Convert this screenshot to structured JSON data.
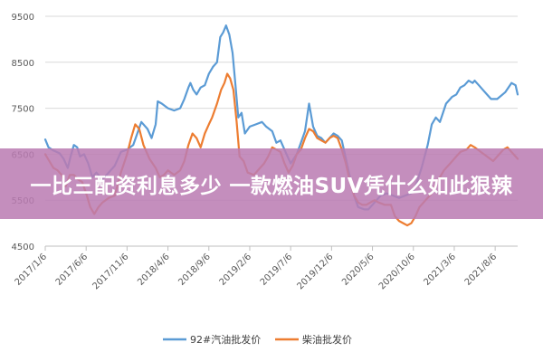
{
  "overlay": {
    "headline": "一比三配资利息多少 一款燃油SUV凭什么如此狠辣",
    "color": "#b97bb1"
  },
  "chart_data": {
    "type": "line",
    "title": "",
    "xlabel": "",
    "ylabel": "",
    "ylim": [
      4500,
      9500
    ],
    "yticks": [
      4500,
      5500,
      6500,
      7500,
      8500,
      9500
    ],
    "xticks": [
      "2017/1/6",
      "2017/6/6",
      "2017/11/6",
      "2018/4/6",
      "2018/9/6",
      "2019/2/6",
      "2019/7/6",
      "2019/12/6",
      "2020/5/6",
      "2020/10/6",
      "2021/3/6",
      "2021/8/6"
    ],
    "xrange": [
      0,
      11.55
    ],
    "grid": true,
    "legend": "bottom",
    "series": [
      {
        "name": "92#汽油批发价",
        "color": "#5b9bd5",
        "points": [
          [
            0.0,
            6820
          ],
          [
            0.08,
            6650
          ],
          [
            0.2,
            6580
          ],
          [
            0.35,
            6520
          ],
          [
            0.45,
            6400
          ],
          [
            0.55,
            6200
          ],
          [
            0.62,
            6450
          ],
          [
            0.7,
            6700
          ],
          [
            0.78,
            6650
          ],
          [
            0.85,
            6450
          ],
          [
            0.95,
            6500
          ],
          [
            1.05,
            6300
          ],
          [
            1.15,
            6000
          ],
          [
            1.25,
            6100
          ],
          [
            1.4,
            5950
          ],
          [
            1.55,
            6100
          ],
          [
            1.7,
            6250
          ],
          [
            1.85,
            6550
          ],
          [
            2.0,
            6600
          ],
          [
            2.15,
            6700
          ],
          [
            2.25,
            6950
          ],
          [
            2.35,
            7200
          ],
          [
            2.5,
            7050
          ],
          [
            2.6,
            6850
          ],
          [
            2.7,
            7150
          ],
          [
            2.75,
            7650
          ],
          [
            2.85,
            7600
          ],
          [
            3.0,
            7500
          ],
          [
            3.15,
            7450
          ],
          [
            3.3,
            7500
          ],
          [
            3.4,
            7700
          ],
          [
            3.5,
            7950
          ],
          [
            3.55,
            8050
          ],
          [
            3.62,
            7900
          ],
          [
            3.7,
            7800
          ],
          [
            3.8,
            7950
          ],
          [
            3.9,
            8000
          ],
          [
            4.0,
            8250
          ],
          [
            4.1,
            8400
          ],
          [
            4.2,
            8500
          ],
          [
            4.28,
            9050
          ],
          [
            4.35,
            9150
          ],
          [
            4.42,
            9300
          ],
          [
            4.5,
            9100
          ],
          [
            4.58,
            8700
          ],
          [
            4.65,
            8000
          ],
          [
            4.72,
            7300
          ],
          [
            4.8,
            7400
          ],
          [
            4.88,
            6950
          ],
          [
            5.0,
            7100
          ],
          [
            5.15,
            7150
          ],
          [
            5.3,
            7200
          ],
          [
            5.4,
            7100
          ],
          [
            5.55,
            7000
          ],
          [
            5.65,
            6750
          ],
          [
            5.75,
            6800
          ],
          [
            5.9,
            6500
          ],
          [
            6.0,
            6300
          ],
          [
            6.15,
            6500
          ],
          [
            6.25,
            6750
          ],
          [
            6.35,
            7000
          ],
          [
            6.45,
            7600
          ],
          [
            6.55,
            7100
          ],
          [
            6.65,
            6900
          ],
          [
            6.75,
            6850
          ],
          [
            6.85,
            6750
          ],
          [
            6.95,
            6850
          ],
          [
            7.05,
            6950
          ],
          [
            7.15,
            6900
          ],
          [
            7.25,
            6800
          ],
          [
            7.35,
            6400
          ],
          [
            7.45,
            6000
          ],
          [
            7.55,
            5600
          ],
          [
            7.65,
            5350
          ],
          [
            7.8,
            5300
          ],
          [
            7.9,
            5300
          ],
          [
            8.0,
            5400
          ],
          [
            8.1,
            5500
          ],
          [
            8.2,
            5600
          ],
          [
            8.35,
            5650
          ],
          [
            8.5,
            5600
          ],
          [
            8.65,
            5550
          ],
          [
            8.8,
            5600
          ],
          [
            8.95,
            5650
          ],
          [
            9.05,
            5800
          ],
          [
            9.2,
            6200
          ],
          [
            9.35,
            6700
          ],
          [
            9.45,
            7150
          ],
          [
            9.55,
            7300
          ],
          [
            9.65,
            7200
          ],
          [
            9.8,
            7600
          ],
          [
            9.95,
            7750
          ],
          [
            10.05,
            7800
          ],
          [
            10.15,
            7950
          ],
          [
            10.25,
            8000
          ],
          [
            10.35,
            8100
          ],
          [
            10.45,
            8050
          ],
          [
            10.5,
            8100
          ],
          [
            10.6,
            8000
          ],
          [
            10.7,
            7900
          ],
          [
            10.8,
            7800
          ],
          [
            10.9,
            7700
          ],
          [
            11.05,
            7700
          ],
          [
            11.25,
            7850
          ],
          [
            11.4,
            8050
          ],
          [
            11.5,
            8000
          ],
          [
            11.55,
            7800
          ]
        ]
      },
      {
        "name": "柴油批发价",
        "color": "#ed7d31",
        "points": [
          [
            0.0,
            6500
          ],
          [
            0.1,
            6350
          ],
          [
            0.2,
            6200
          ],
          [
            0.3,
            6150
          ],
          [
            0.4,
            6050
          ],
          [
            0.5,
            5800
          ],
          [
            0.6,
            6050
          ],
          [
            0.7,
            6050
          ],
          [
            0.8,
            5950
          ],
          [
            0.9,
            5900
          ],
          [
            1.0,
            5650
          ],
          [
            1.1,
            5350
          ],
          [
            1.2,
            5200
          ],
          [
            1.3,
            5350
          ],
          [
            1.4,
            5450
          ],
          [
            1.55,
            5550
          ],
          [
            1.7,
            5600
          ],
          [
            1.85,
            6100
          ],
          [
            2.0,
            6500
          ],
          [
            2.1,
            6850
          ],
          [
            2.2,
            7150
          ],
          [
            2.3,
            7050
          ],
          [
            2.4,
            6700
          ],
          [
            2.55,
            6400
          ],
          [
            2.7,
            6200
          ],
          [
            2.8,
            6000
          ],
          [
            2.9,
            6050
          ],
          [
            3.0,
            6150
          ],
          [
            3.15,
            6050
          ],
          [
            3.3,
            6150
          ],
          [
            3.4,
            6350
          ],
          [
            3.5,
            6700
          ],
          [
            3.6,
            6950
          ],
          [
            3.7,
            6850
          ],
          [
            3.8,
            6650
          ],
          [
            3.9,
            6950
          ],
          [
            4.0,
            7150
          ],
          [
            4.08,
            7300
          ],
          [
            4.2,
            7600
          ],
          [
            4.3,
            7900
          ],
          [
            4.38,
            8050
          ],
          [
            4.45,
            8250
          ],
          [
            4.52,
            8150
          ],
          [
            4.6,
            7900
          ],
          [
            4.68,
            7200
          ],
          [
            4.75,
            6450
          ],
          [
            4.85,
            6350
          ],
          [
            4.95,
            6100
          ],
          [
            5.1,
            6050
          ],
          [
            5.25,
            6200
          ],
          [
            5.35,
            6300
          ],
          [
            5.45,
            6450
          ],
          [
            5.55,
            6650
          ],
          [
            5.65,
            6600
          ],
          [
            5.75,
            6550
          ],
          [
            5.85,
            6300
          ],
          [
            5.95,
            6100
          ],
          [
            6.05,
            6250
          ],
          [
            6.15,
            6500
          ],
          [
            6.25,
            6600
          ],
          [
            6.35,
            6850
          ],
          [
            6.45,
            7050
          ],
          [
            6.55,
            7000
          ],
          [
            6.65,
            6850
          ],
          [
            6.75,
            6800
          ],
          [
            6.85,
            6750
          ],
          [
            6.95,
            6850
          ],
          [
            7.05,
            6900
          ],
          [
            7.15,
            6850
          ],
          [
            7.25,
            6600
          ],
          [
            7.35,
            6300
          ],
          [
            7.45,
            5900
          ],
          [
            7.55,
            5600
          ],
          [
            7.65,
            5450
          ],
          [
            7.75,
            5400
          ],
          [
            7.85,
            5400
          ],
          [
            7.95,
            5450
          ],
          [
            8.05,
            5500
          ],
          [
            8.15,
            5450
          ],
          [
            8.3,
            5400
          ],
          [
            8.45,
            5400
          ],
          [
            8.55,
            5150
          ],
          [
            8.65,
            5050
          ],
          [
            8.75,
            5000
          ],
          [
            8.85,
            4950
          ],
          [
            8.95,
            5000
          ],
          [
            9.05,
            5150
          ],
          [
            9.15,
            5350
          ],
          [
            9.3,
            5500
          ],
          [
            9.45,
            5650
          ],
          [
            9.55,
            5850
          ],
          [
            9.65,
            6000
          ],
          [
            9.75,
            6150
          ],
          [
            9.9,
            6300
          ],
          [
            10.05,
            6450
          ],
          [
            10.15,
            6550
          ],
          [
            10.3,
            6600
          ],
          [
            10.4,
            6700
          ],
          [
            10.5,
            6650
          ],
          [
            10.65,
            6550
          ],
          [
            10.8,
            6450
          ],
          [
            10.95,
            6350
          ],
          [
            11.1,
            6500
          ],
          [
            11.2,
            6600
          ],
          [
            11.3,
            6650
          ],
          [
            11.4,
            6550
          ],
          [
            11.55,
            6400
          ]
        ]
      }
    ]
  }
}
